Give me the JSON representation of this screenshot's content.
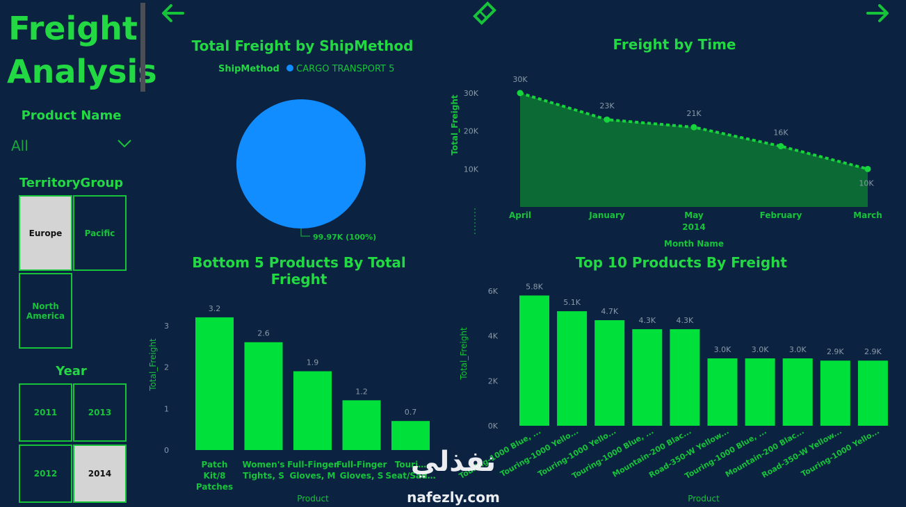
{
  "report_title": "Freight Analysis",
  "slicers": {
    "product_name": {
      "title": "Product Name",
      "value": "All"
    },
    "territory_group": {
      "title": "TerritoryGroup",
      "options": [
        {
          "label": "Europe",
          "selected": true
        },
        {
          "label": "Pacific",
          "selected": false
        },
        {
          "label": "North America",
          "selected": false
        }
      ]
    },
    "year": {
      "title": "Year",
      "options": [
        {
          "label": "2011",
          "selected": false
        },
        {
          "label": "2013",
          "selected": false
        },
        {
          "label": "2012",
          "selected": false
        },
        {
          "label": "2014",
          "selected": true
        }
      ]
    }
  },
  "nav": {
    "back_icon": "arrow-left-icon",
    "reset_icon": "eraser-icon",
    "forward_icon": "arrow-right-icon"
  },
  "watermark": {
    "arabic": "نفذلي",
    "latin": "nafezly.com"
  },
  "colors": {
    "background": "#0b2240",
    "accent": "#16d43c",
    "bar": "#00e03a",
    "pie": "#118dff",
    "area": "#0c6b34"
  },
  "chart_data": [
    {
      "id": "pie",
      "type": "pie",
      "title": "Total Freight by ShipMethod",
      "legend_title": "ShipMethod",
      "legend_position": "top",
      "slices": [
        {
          "name": "CARGO TRANSPORT 5",
          "value": 99.97,
          "label": "99.97K (100%)"
        }
      ]
    },
    {
      "id": "area",
      "type": "area",
      "title": "Freight by Time",
      "xlabel": "Month Name",
      "ylabel": "Total_Freight",
      "x_sub_label": "2014",
      "categories": [
        "April",
        "January",
        "May",
        "February",
        "March"
      ],
      "values": [
        30,
        23,
        21,
        16,
        10
      ],
      "data_labels": [
        "30K",
        "23K",
        "21K",
        "16K",
        "10K"
      ],
      "yticks": [
        {
          "v": 10,
          "label": "10K"
        },
        {
          "v": 20,
          "label": "20K"
        },
        {
          "v": 30,
          "label": "30K"
        }
      ],
      "ylim": [
        0,
        32
      ]
    },
    {
      "id": "bottom5",
      "type": "bar",
      "title": "Bottom 5 Products By Total Frieght",
      "xlabel": "Product",
      "ylabel": "Total_Freight",
      "categories": [
        [
          "Patch",
          "Kit/8",
          "Patches"
        ],
        [
          "Women's",
          "Tights, S"
        ],
        [
          "Full-Finger",
          "Gloves, M"
        ],
        [
          "Full-Finger",
          "Gloves, S"
        ],
        [
          "Touri…",
          "Seat/Sad…"
        ]
      ],
      "values": [
        3.2,
        2.6,
        1.9,
        1.2,
        0.7
      ],
      "data_labels": [
        "3.2",
        "2.6",
        "1.9",
        "1.2",
        "0.7"
      ],
      "yticks": [
        {
          "v": 0,
          "label": "0"
        },
        {
          "v": 1,
          "label": "1"
        },
        {
          "v": 2,
          "label": "2"
        },
        {
          "v": 3,
          "label": "3"
        }
      ],
      "ylim": [
        0,
        3.5
      ]
    },
    {
      "id": "top10",
      "type": "bar",
      "title": "Top 10 Products By Freight",
      "xlabel": "Product",
      "ylabel": "Total_Freight",
      "categories": [
        "Touring-1000 Blue, ...",
        "Touring-1000 Yello...",
        "Touring-1000 Yello...",
        "Touring-1000 Blue, ...",
        "Mountain-200 Blac...",
        "Road-350-W Yellow...",
        "Touring-1000 Blue, ...",
        "Mountain-200 Blac...",
        "Road-350-W Yellow...",
        "Touring-1000 Yello..."
      ],
      "values": [
        5.8,
        5.1,
        4.7,
        4.3,
        4.3,
        3.0,
        3.0,
        3.0,
        2.9,
        2.9
      ],
      "data_labels": [
        "5.8K",
        "5.1K",
        "4.7K",
        "4.3K",
        "4.3K",
        "3.0K",
        "3.0K",
        "3.0K",
        "2.9K",
        "2.9K"
      ],
      "yticks": [
        {
          "v": 0,
          "label": "0K"
        },
        {
          "v": 2,
          "label": "2K"
        },
        {
          "v": 4,
          "label": "4K"
        },
        {
          "v": 6,
          "label": "6K"
        }
      ],
      "ylim": [
        0,
        6
      ]
    }
  ]
}
